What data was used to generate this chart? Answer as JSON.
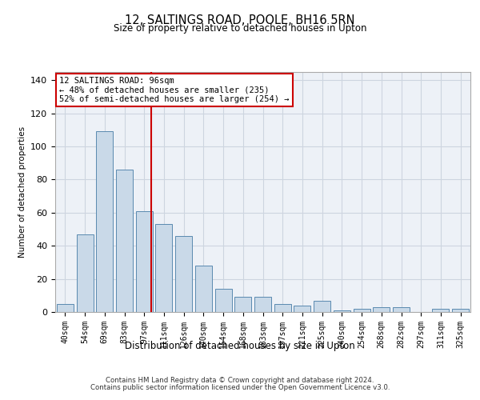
{
  "title": "12, SALTINGS ROAD, POOLE, BH16 5RN",
  "subtitle": "Size of property relative to detached houses in Upton",
  "xlabel": "Distribution of detached houses by size in Upton",
  "ylabel": "Number of detached properties",
  "bins": [
    "40sqm",
    "54sqm",
    "69sqm",
    "83sqm",
    "97sqm",
    "111sqm",
    "126sqm",
    "140sqm",
    "154sqm",
    "168sqm",
    "183sqm",
    "197sqm",
    "211sqm",
    "225sqm",
    "240sqm",
    "254sqm",
    "268sqm",
    "282sqm",
    "297sqm",
    "311sqm",
    "325sqm"
  ],
  "values": [
    5,
    47,
    109,
    86,
    61,
    53,
    46,
    28,
    14,
    9,
    9,
    5,
    4,
    7,
    1,
    2,
    3,
    3,
    0,
    2,
    2
  ],
  "bar_color": "#c9d9e8",
  "bar_edge_color": "#5a8ab0",
  "vline_x_index": 4,
  "vline_color": "#cc0000",
  "annotation_line1": "12 SALTINGS ROAD: 96sqm",
  "annotation_line2": "← 48% of detached houses are smaller (235)",
  "annotation_line3": "52% of semi-detached houses are larger (254) →",
  "annotation_box_color": "#ffffff",
  "annotation_box_edge": "#cc0000",
  "ylim": [
    0,
    145
  ],
  "yticks": [
    0,
    20,
    40,
    60,
    80,
    100,
    120,
    140
  ],
  "grid_color": "#cdd5e0",
  "bg_color": "#edf1f7",
  "footer1": "Contains HM Land Registry data © Crown copyright and database right 2024.",
  "footer2": "Contains public sector information licensed under the Open Government Licence v3.0."
}
